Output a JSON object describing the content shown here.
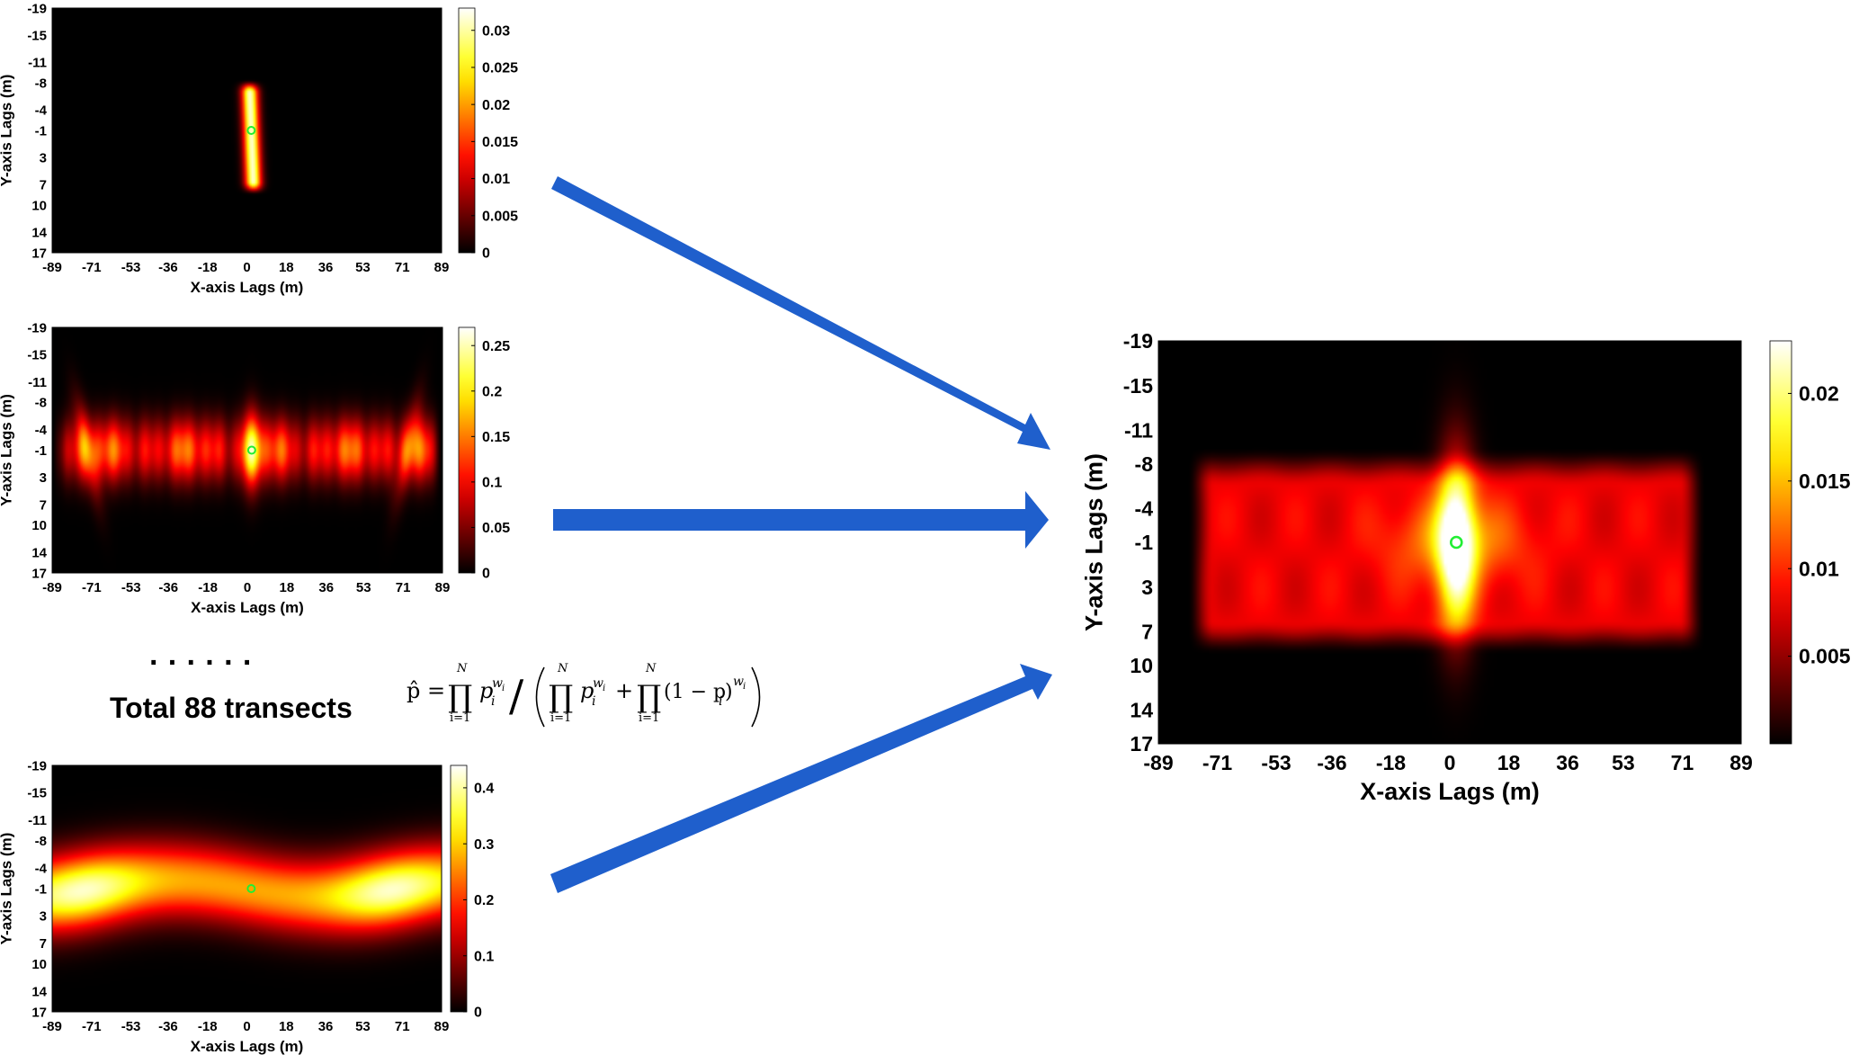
{
  "colors": {
    "arrow": "#1f5fcc",
    "marker": "#22ee33",
    "background": "#ffffff"
  },
  "colormap": "hot",
  "annotation": {
    "dots": "· · · · · ·",
    "total_text": "Total 88 transects",
    "formula": {
      "lhs": "p̂ =",
      "prod_symbol": "∏",
      "upper_limit": "N",
      "lower_limit": "i=1",
      "base": "p",
      "subscript": "i",
      "exponent": "w",
      "exponent_sub": "i",
      "slash": "/",
      "one_minus": "(1 − p",
      "close_paren": ")",
      "plus": "+"
    }
  },
  "chart_data": [
    {
      "type": "heatmap",
      "id": "top-left",
      "xlabel": "X-axis Lags (m)",
      "ylabel": "Y-axis Lags (m)",
      "xticks": [
        "-89",
        "-71",
        "-53",
        "-36",
        "-18",
        "0",
        "18",
        "36",
        "53",
        "71",
        "89"
      ],
      "yticks": [
        "-19",
        "-15",
        "-11",
        "-8",
        "-4",
        "-1",
        "3",
        "7",
        "10",
        "14",
        "17"
      ],
      "xlim": [
        -89,
        89
      ],
      "ylim": [
        -19,
        17
      ],
      "colorbar_ticks": [
        "0.03",
        "0.025",
        "0.02",
        "0.015",
        "0.01",
        "0.005",
        "0"
      ],
      "colorbar_range": [
        0,
        0.033
      ],
      "marker": {
        "x": 2,
        "y": -1
      },
      "pattern": "narrow-vertical-streak"
    },
    {
      "type": "heatmap",
      "id": "middle-left",
      "xlabel": "X-axis Lags (m)",
      "ylabel": "Y-axis Lags (m)",
      "xticks": [
        "-89",
        "-71",
        "-53",
        "-36",
        "-18",
        "0",
        "18",
        "36",
        "53",
        "71",
        "89"
      ],
      "yticks": [
        "-19",
        "-15",
        "-11",
        "-8",
        "-4",
        "-1",
        "3",
        "7",
        "10",
        "14",
        "17"
      ],
      "xlim": [
        -89,
        89
      ],
      "ylim": [
        -19,
        17
      ],
      "colorbar_ticks": [
        "0.25",
        "0.2",
        "0.15",
        "0.1",
        "0.05",
        "0"
      ],
      "colorbar_range": [
        0,
        0.27
      ],
      "marker": {
        "x": 2,
        "y": -1
      },
      "pattern": "wide-horizontal-band"
    },
    {
      "type": "heatmap",
      "id": "bottom-left",
      "xlabel": "X-axis Lags (m)",
      "ylabel": "Y-axis Lags (m)",
      "xticks": [
        "-89",
        "-71",
        "-53",
        "-36",
        "-18",
        "0",
        "18",
        "36",
        "53",
        "71",
        "89"
      ],
      "yticks": [
        "-19",
        "-15",
        "-11",
        "-8",
        "-4",
        "-1",
        "3",
        "7",
        "10",
        "14",
        "17"
      ],
      "xlim": [
        -89,
        89
      ],
      "ylim": [
        -19,
        17
      ],
      "colorbar_ticks": [
        "0.4",
        "0.3",
        "0.2",
        "0.1",
        "0"
      ],
      "colorbar_range": [
        0,
        0.44
      ],
      "marker": {
        "x": 2,
        "y": -1
      },
      "pattern": "bright-horizontal-band"
    },
    {
      "type": "heatmap",
      "id": "combined",
      "xlabel": "X-axis Lags (m)",
      "ylabel": "Y-axis Lags (m)",
      "xticks": [
        "-89",
        "-71",
        "-53",
        "-36",
        "-18",
        "0",
        "18",
        "36",
        "53",
        "71",
        "89"
      ],
      "yticks": [
        "-19",
        "-15",
        "-11",
        "-8",
        "-4",
        "-1",
        "3",
        "7",
        "10",
        "14",
        "17"
      ],
      "xlim": [
        -89,
        89
      ],
      "ylim": [
        -19,
        17
      ],
      "colorbar_ticks": [
        "0.02",
        "0.015",
        "0.01",
        "0.005"
      ],
      "colorbar_range": [
        0,
        0.023
      ],
      "marker": {
        "x": 2,
        "y": -1
      },
      "pattern": "combined-rectangle"
    }
  ]
}
